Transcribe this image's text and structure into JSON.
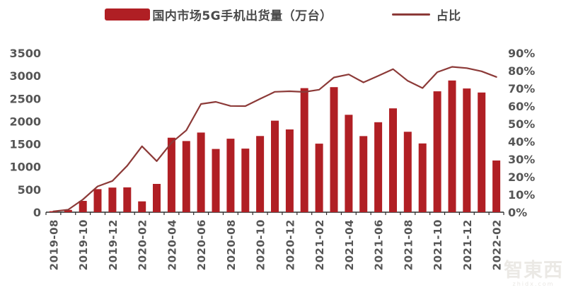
{
  "colors": {
    "bar": "#b01f24",
    "line": "#8c3a38",
    "axis_text": "#565656",
    "axis_line": "#2b2b2b"
  },
  "watermark": {
    "title": "智東西",
    "domain": "zhidx.com"
  },
  "chart_data": {
    "type": "bar",
    "subtype": "bar+line combo, dual axis",
    "title": "",
    "legend_position": "top",
    "grid": false,
    "categories": [
      "2019-08",
      "2019-09",
      "2019-10",
      "2019-11",
      "2019-12",
      "2020-01",
      "2020-02",
      "2020-03",
      "2020-04",
      "2020-05",
      "2020-06",
      "2020-07",
      "2020-08",
      "2020-09",
      "2020-10",
      "2020-11",
      "2020-12",
      "2021-01",
      "2021-02",
      "2021-03",
      "2021-04",
      "2021-05",
      "2021-06",
      "2021-07",
      "2021-08",
      "2021-09",
      "2021-10",
      "2021-11",
      "2021-12",
      "2022-01",
      "2022-02"
    ],
    "x_tick_every": 2,
    "series": [
      {
        "name": "国内市场5G手机出货量（万台）",
        "type": "bar",
        "axis": "left",
        "values": [
          21.9,
          49.7,
          249.4,
          507.4,
          541.4,
          546.5,
          238.0,
          621.5,
          1638.2,
          1564.3,
          1751.3,
          1391.1,
          1617.0,
          1399.0,
          1676.0,
          2013.6,
          1820.0,
          2727.8,
          1507.1,
          2749.8,
          2142.0,
          1673.9,
          1979.1,
          2283.4,
          1768.8,
          1511.6,
          2659.0,
          2896.6,
          2721.1,
          2632.4,
          1137.4
        ]
      },
      {
        "name": "占比",
        "type": "line",
        "axis": "right",
        "unit": "%",
        "values": [
          0.5,
          1.4,
          7.2,
          14.6,
          17.7,
          26.3,
          37.3,
          28.9,
          39.3,
          46.3,
          61.2,
          62.4,
          60.1,
          60.0,
          64.1,
          68.1,
          68.4,
          68.0,
          69.3,
          76.2,
          77.9,
          73.4,
          77.1,
          80.9,
          74.3,
          70.2,
          79.2,
          82.2,
          81.5,
          79.7,
          76.5
        ]
      }
    ],
    "left_axis": {
      "min": 0,
      "max": 3500,
      "step": 500,
      "ticks": [
        "0",
        "500",
        "1000",
        "1500",
        "2000",
        "2500",
        "3000",
        "3500"
      ]
    },
    "right_axis": {
      "min": 0,
      "max": 90,
      "step": 10,
      "unit": "%",
      "ticks": [
        "0%",
        "10%",
        "20%",
        "30%",
        "40%",
        "50%",
        "60%",
        "70%",
        "80%",
        "90%"
      ]
    }
  }
}
